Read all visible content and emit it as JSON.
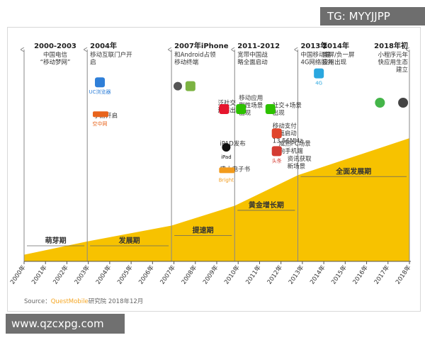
{
  "watermark_top": "TG: MYYJJPP",
  "watermark_bottom": "www.qzcxpg.com",
  "source": {
    "prefix": "Source：",
    "brand": "QuestMobile",
    "suffix": "研究院 2018年12月"
  },
  "colors": {
    "fill": "#f7c200",
    "axis": "#888888",
    "text": "#333333"
  },
  "chart_data": {
    "type": "area",
    "x_ticks": [
      "2000年",
      "2001年",
      "2002年",
      "2003年",
      "2004年",
      "2005年",
      "2006年",
      "2007年",
      "2008年",
      "2009年",
      "2010年",
      "2011年",
      "2012年",
      "2013年",
      "2014年",
      "2015年",
      "2016年",
      "2017年",
      "2018年"
    ],
    "x_range": [
      2000,
      2018.3
    ],
    "y_range": [
      0,
      100
    ],
    "area": {
      "x": [
        2000,
        2003,
        2007,
        2010,
        2013,
        2018.3
      ],
      "y": [
        5,
        15,
        27,
        42,
        65,
        93
      ]
    },
    "milestones": [
      {
        "x": 2000,
        "title": "2000-2003",
        "lines": [
          "中国电信",
          "“移动梦网”"
        ]
      },
      {
        "x": 2003,
        "title": "2004年",
        "lines": [
          "移动互联门户开",
          "启"
        ]
      },
      {
        "x": 2007,
        "title": "2007年iPhone",
        "lines": [
          "和Android占领",
          "移动终端"
        ]
      },
      {
        "x": 2010,
        "title": "2011-2012",
        "lines": [
          "宽带中国战",
          "略全面启动"
        ]
      },
      {
        "x": 2013,
        "title": "2013年",
        "lines": [
          "中国移动建",
          "4G网络服务"
        ]
      },
      {
        "x": 2014.1,
        "title": "2014年",
        "lines": [
          "首屏/负一屏",
          "应用出现"
        ]
      },
      {
        "x": 2018.3,
        "title": "2018年初",
        "lines": [
          "小程序元年",
          "快应用生态",
          "建立"
        ]
      }
    ],
    "annotations": [
      {
        "lines": [
          "手游开启"
        ],
        "x": 2003.3,
        "y_pos": 0.3
      },
      {
        "lines": [
          "泛社交",
          "形态出现"
        ],
        "x": 2009.2,
        "y_pos": 0.2
      },
      {
        "lines": [
          "移动应用",
          "刷性场景",
          "出现"
        ],
        "x": 2010.2,
        "y_pos": 0.16
      },
      {
        "lines": [
          "社交+场景",
          "出现"
        ],
        "x": 2011.8,
        "y_pos": 0.22
      },
      {
        "lines": [
          "移动支付",
          "全面启动",
          "13.56MHz"
        ],
        "x": 2011.8,
        "y_pos": 0.38
      },
      {
        "lines": [
          "iPAD发布"
        ],
        "x": 2009.3,
        "y_pos": 0.52
      },
      {
        "lines": [
          "盛大电子书"
        ],
        "x": 2009.3,
        "y_pos": 0.72
      },
      {
        "lines": [
          "成熟PC场景",
          "向手机端"
        ],
        "x": 2012.1,
        "y_pos": 0.52
      },
      {
        "lines": [
          "资讯获取",
          "新场景"
        ],
        "x": 2012.5,
        "y_pos": 0.64
      }
    ],
    "phases": [
      {
        "label": "萌芽期",
        "x0": 2000,
        "x1": 2003
      },
      {
        "label": "发展期",
        "x0": 2003,
        "x1": 2007
      },
      {
        "label": "提速期",
        "x0": 2007,
        "x1": 2010
      },
      {
        "label": "黄金增长期",
        "x0": 2010,
        "x1": 2013
      },
      {
        "label": "全面发展期",
        "x0": 2013,
        "x1": 2018.3
      }
    ],
    "icons": [
      {
        "name": "uc-browser-icon",
        "x": 2003.6,
        "y_pos": 0.09,
        "label": "UC浏览器"
      },
      {
        "name": "kong-zhong-logo",
        "x": 2003.6,
        "y_pos": 0.34,
        "label": "空中网"
      },
      {
        "name": "apple-icon",
        "x": 2007.3,
        "y_pos": 0.12,
        "label": ""
      },
      {
        "name": "android-icon",
        "x": 2007.9,
        "y_pos": 0.12,
        "label": ""
      },
      {
        "name": "weibo-icon",
        "x": 2009.5,
        "y_pos": 0.3,
        "label": ""
      },
      {
        "name": "wechat-icon",
        "x": 2010.3,
        "y_pos": 0.3,
        "label": ""
      },
      {
        "name": "ipad-icon",
        "x": 2009.6,
        "y_pos": 0.6,
        "label": "iPad"
      },
      {
        "name": "bright-logo",
        "x": 2009.6,
        "y_pos": 0.78,
        "label": "Bright"
      },
      {
        "name": "4g-icon",
        "x": 2014.0,
        "y_pos": 0.02,
        "label": "4G"
      },
      {
        "name": "wechat-pay-icon",
        "x": 2011.7,
        "y_pos": 0.3,
        "label": ""
      },
      {
        "name": "flipboard-icon",
        "x": 2012.0,
        "y_pos": 0.49,
        "label": ""
      },
      {
        "name": "toutiao-icon",
        "x": 2012.0,
        "y_pos": 0.63,
        "label": "头条"
      },
      {
        "name": "mini-program-icon",
        "x": 2016.9,
        "y_pos": 0.25,
        "label": ""
      },
      {
        "name": "quick-app-icon",
        "x": 2018.0,
        "y_pos": 0.25,
        "label": ""
      }
    ]
  }
}
